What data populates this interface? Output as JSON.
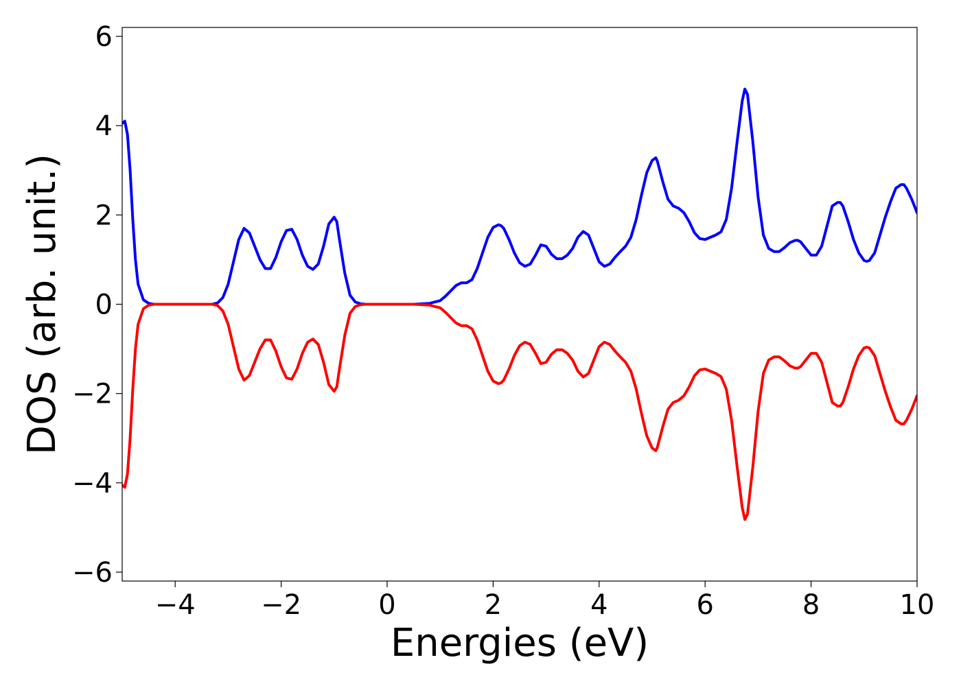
{
  "chart_data": {
    "type": "line",
    "title": "",
    "xlabel": "Energies (eV)",
    "ylabel": "DOS (arb. unit.)",
    "xlim": [
      -5,
      10
    ],
    "ylim": [
      -6.2,
      6.2
    ],
    "grid": false,
    "legend": "none",
    "x_ticks": [
      -4,
      -2,
      0,
      2,
      4,
      6,
      8,
      10
    ],
    "y_ticks": [
      -6,
      -4,
      -2,
      0,
      2,
      4,
      6
    ],
    "x_tick_labels": [
      "−4",
      "−2",
      "0",
      "2",
      "4",
      "6",
      "8",
      "10"
    ],
    "y_tick_labels": [
      "−6",
      "−4",
      "−2",
      "0",
      "2",
      "4",
      "6"
    ],
    "series": [
      {
        "color": "#0000ff",
        "x": [
          -5.0,
          -4.95,
          -4.9,
          -4.85,
          -4.8,
          -4.75,
          -4.7,
          -4.6,
          -4.5,
          -4.4,
          -4.0,
          -3.5,
          -3.3,
          -3.2,
          -3.1,
          -3.0,
          -2.9,
          -2.8,
          -2.7,
          -2.6,
          -2.5,
          -2.4,
          -2.3,
          -2.2,
          -2.1,
          -2.0,
          -1.9,
          -1.8,
          -1.7,
          -1.6,
          -1.5,
          -1.4,
          -1.3,
          -1.2,
          -1.1,
          -1.0,
          -0.95,
          -0.9,
          -0.8,
          -0.7,
          -0.6,
          -0.5,
          -0.4,
          0.0,
          0.5,
          0.8,
          1.0,
          1.1,
          1.2,
          1.3,
          1.4,
          1.5,
          1.6,
          1.7,
          1.8,
          1.9,
          2.0,
          2.1,
          2.15,
          2.2,
          2.3,
          2.4,
          2.5,
          2.6,
          2.7,
          2.8,
          2.9,
          3.0,
          3.1,
          3.2,
          3.3,
          3.4,
          3.5,
          3.6,
          3.7,
          3.8,
          3.9,
          4.0,
          4.1,
          4.2,
          4.3,
          4.4,
          4.5,
          4.6,
          4.7,
          4.8,
          4.9,
          5.0,
          5.07,
          5.1,
          5.2,
          5.3,
          5.4,
          5.5,
          5.6,
          5.7,
          5.8,
          5.9,
          6.0,
          6.1,
          6.2,
          6.3,
          6.4,
          6.5,
          6.6,
          6.7,
          6.75,
          6.8,
          6.9,
          7.0,
          7.1,
          7.2,
          7.3,
          7.4,
          7.5,
          7.6,
          7.7,
          7.75,
          7.8,
          7.9,
          8.0,
          8.1,
          8.2,
          8.3,
          8.4,
          8.5,
          8.55,
          8.6,
          8.7,
          8.8,
          8.9,
          9.0,
          9.05,
          9.1,
          9.2,
          9.3,
          9.4,
          9.5,
          9.6,
          9.7,
          9.75,
          9.8,
          9.9,
          10.0
        ],
        "y": [
          4.05,
          4.1,
          3.8,
          3.0,
          1.9,
          1.0,
          0.45,
          0.1,
          0.02,
          0.0,
          0.0,
          0.0,
          0.0,
          0.03,
          0.15,
          0.45,
          0.95,
          1.45,
          1.7,
          1.6,
          1.3,
          1.0,
          0.8,
          0.8,
          1.05,
          1.4,
          1.65,
          1.68,
          1.45,
          1.1,
          0.85,
          0.78,
          0.9,
          1.3,
          1.8,
          1.95,
          1.85,
          1.45,
          0.7,
          0.2,
          0.05,
          0.01,
          0.0,
          0.0,
          0.0,
          0.02,
          0.08,
          0.18,
          0.3,
          0.42,
          0.48,
          0.48,
          0.55,
          0.8,
          1.15,
          1.5,
          1.72,
          1.78,
          1.76,
          1.7,
          1.45,
          1.15,
          0.93,
          0.85,
          0.9,
          1.1,
          1.33,
          1.3,
          1.12,
          1.02,
          1.02,
          1.1,
          1.25,
          1.5,
          1.63,
          1.55,
          1.25,
          0.95,
          0.85,
          0.9,
          1.05,
          1.18,
          1.3,
          1.5,
          1.9,
          2.45,
          2.95,
          3.22,
          3.28,
          3.2,
          2.75,
          2.35,
          2.2,
          2.15,
          2.05,
          1.85,
          1.6,
          1.47,
          1.45,
          1.5,
          1.55,
          1.62,
          1.9,
          2.6,
          3.6,
          4.55,
          4.82,
          4.7,
          3.65,
          2.4,
          1.55,
          1.25,
          1.18,
          1.18,
          1.27,
          1.38,
          1.43,
          1.43,
          1.4,
          1.25,
          1.1,
          1.1,
          1.3,
          1.75,
          2.2,
          2.28,
          2.28,
          2.2,
          1.85,
          1.45,
          1.15,
          0.98,
          0.96,
          0.98,
          1.15,
          1.55,
          1.95,
          2.3,
          2.6,
          2.68,
          2.68,
          2.6,
          2.35,
          2.05
        ]
      },
      {
        "color": "#ff0000",
        "x": [
          -5.0,
          -4.95,
          -4.9,
          -4.85,
          -4.8,
          -4.75,
          -4.7,
          -4.6,
          -4.5,
          -4.4,
          -4.0,
          -3.5,
          -3.3,
          -3.2,
          -3.1,
          -3.0,
          -2.9,
          -2.8,
          -2.7,
          -2.6,
          -2.5,
          -2.4,
          -2.3,
          -2.2,
          -2.1,
          -2.0,
          -1.9,
          -1.8,
          -1.7,
          -1.6,
          -1.5,
          -1.4,
          -1.3,
          -1.2,
          -1.1,
          -1.0,
          -0.95,
          -0.9,
          -0.8,
          -0.7,
          -0.6,
          -0.5,
          -0.4,
          0.0,
          0.5,
          0.8,
          1.0,
          1.1,
          1.2,
          1.3,
          1.4,
          1.5,
          1.6,
          1.7,
          1.8,
          1.9,
          2.0,
          2.1,
          2.15,
          2.2,
          2.3,
          2.4,
          2.5,
          2.6,
          2.7,
          2.8,
          2.9,
          3.0,
          3.1,
          3.2,
          3.3,
          3.4,
          3.5,
          3.6,
          3.7,
          3.8,
          3.9,
          4.0,
          4.1,
          4.2,
          4.3,
          4.4,
          4.5,
          4.6,
          4.7,
          4.8,
          4.9,
          5.0,
          5.07,
          5.1,
          5.2,
          5.3,
          5.4,
          5.5,
          5.6,
          5.7,
          5.8,
          5.9,
          6.0,
          6.1,
          6.2,
          6.3,
          6.4,
          6.5,
          6.6,
          6.7,
          6.75,
          6.8,
          6.9,
          7.0,
          7.1,
          7.2,
          7.3,
          7.4,
          7.5,
          7.6,
          7.7,
          7.75,
          7.8,
          7.9,
          8.0,
          8.1,
          8.2,
          8.3,
          8.4,
          8.5,
          8.55,
          8.6,
          8.7,
          8.8,
          8.9,
          9.0,
          9.05,
          9.1,
          9.2,
          9.3,
          9.4,
          9.5,
          9.6,
          9.7,
          9.75,
          9.8,
          9.9,
          10.0
        ],
        "y": [
          -4.05,
          -4.1,
          -3.8,
          -3.0,
          -1.9,
          -1.0,
          -0.45,
          -0.1,
          -0.02,
          0.0,
          0.0,
          0.0,
          0.0,
          -0.03,
          -0.15,
          -0.45,
          -0.95,
          -1.45,
          -1.7,
          -1.6,
          -1.3,
          -1.0,
          -0.8,
          -0.8,
          -1.05,
          -1.4,
          -1.65,
          -1.68,
          -1.45,
          -1.1,
          -0.85,
          -0.78,
          -0.9,
          -1.3,
          -1.8,
          -1.95,
          -1.85,
          -1.45,
          -0.7,
          -0.2,
          -0.05,
          -0.01,
          0.0,
          0.0,
          0.0,
          -0.02,
          -0.08,
          -0.18,
          -0.3,
          -0.42,
          -0.48,
          -0.48,
          -0.55,
          -0.8,
          -1.15,
          -1.5,
          -1.72,
          -1.78,
          -1.76,
          -1.7,
          -1.45,
          -1.15,
          -0.93,
          -0.85,
          -0.9,
          -1.1,
          -1.33,
          -1.3,
          -1.12,
          -1.02,
          -1.02,
          -1.1,
          -1.25,
          -1.5,
          -1.63,
          -1.55,
          -1.25,
          -0.95,
          -0.85,
          -0.9,
          -1.05,
          -1.18,
          -1.3,
          -1.5,
          -1.9,
          -2.45,
          -2.95,
          -3.22,
          -3.28,
          -3.2,
          -2.75,
          -2.35,
          -2.2,
          -2.15,
          -2.05,
          -1.85,
          -1.6,
          -1.47,
          -1.45,
          -1.5,
          -1.55,
          -1.62,
          -1.9,
          -2.6,
          -3.6,
          -4.55,
          -4.82,
          -4.7,
          -3.65,
          -2.4,
          -1.55,
          -1.25,
          -1.18,
          -1.18,
          -1.27,
          -1.38,
          -1.43,
          -1.43,
          -1.4,
          -1.25,
          -1.1,
          -1.1,
          -1.3,
          -1.75,
          -2.2,
          -2.28,
          -2.28,
          -2.2,
          -1.85,
          -1.45,
          -1.15,
          -0.98,
          -0.96,
          -0.98,
          -1.15,
          -1.55,
          -1.95,
          -2.3,
          -2.6,
          -2.68,
          -2.68,
          -2.6,
          -2.35,
          -2.05
        ]
      }
    ]
  }
}
